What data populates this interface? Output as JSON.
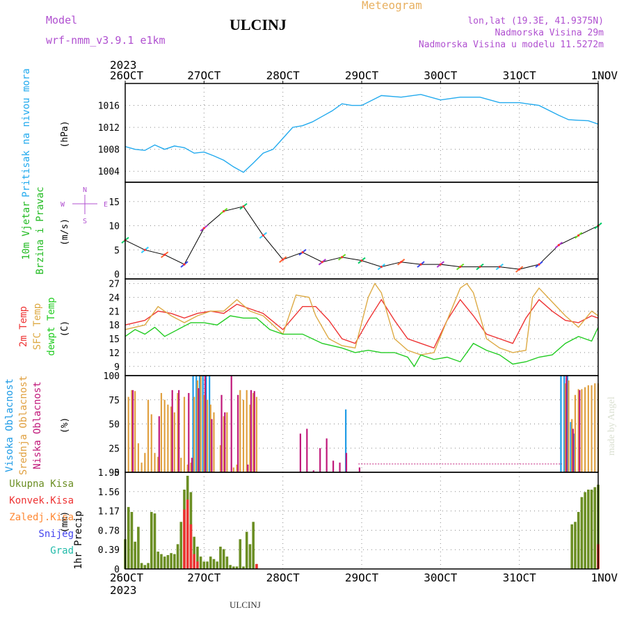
{
  "header": {
    "model_label": "Model",
    "model_name": "wrf-nmm_v3.9.1  e1km",
    "station": "ULCINJ",
    "product": "Meteogram",
    "lonlat": "lon,lat (19.3E, 41.9375N)",
    "altitude": "Nadmorska Visina 29m",
    "model_altitude": "Nadmorska Visina u modelu 11.5272m",
    "footer_station": "ULCINJ",
    "credit": "made by Angel"
  },
  "colors": {
    "pressure": "#22aaee",
    "temp2m": "#ee3333",
    "sfc_temp": "#ddaa44",
    "dewpoint": "#22cc22",
    "high_cloud": "#1e9be6",
    "mid_cloud": "#e0a040",
    "low_cloud": "#c0187a",
    "total_precip": "#6b8e23",
    "convective": "#ee3333",
    "frozen": "#ff8833",
    "snow": "#4444ee",
    "hail": "#22bbaa",
    "header_purple": "#b050d0",
    "header_orange": "#e8b060"
  },
  "chart_data": {
    "type": "multi-panel meteogram",
    "x_axis": {
      "year": "2023",
      "ticks": [
        "26OCT",
        "27OCT",
        "28OCT",
        "29OCT",
        "30OCT",
        "31OCT",
        "1NOV"
      ],
      "range_hours": [
        0,
        144
      ]
    },
    "panels": [
      {
        "id": "pressure",
        "type": "line",
        "ylabel": "Pritisak na nivou mora",
        "unit": "(hPa)",
        "ylim": [
          1002,
          1020
        ],
        "yticks": [
          1004,
          1008,
          1012,
          1016
        ],
        "series": [
          {
            "x": [
              0,
              3,
              6,
              9,
              12,
              15,
              18,
              21,
              24,
              27,
              30,
              33,
              36,
              39,
              42,
              45,
              48,
              51,
              54,
              57,
              60,
              63,
              66,
              69,
              72,
              78,
              84,
              90,
              96,
              102,
              108,
              114,
              120,
              126,
              132,
              135,
              138,
              141,
              144
            ],
            "y": [
              1008.5,
              1008,
              1007.8,
              1008.8,
              1008,
              1008.6,
              1008.3,
              1007.3,
              1007.5,
              1006.8,
              1006,
              1004.8,
              1003.8,
              1005.5,
              1007.3,
              1008,
              1010,
              1012,
              1012.3,
              1013,
              1014,
              1015,
              1016.3,
              1016,
              1016,
              1017.8,
              1017.5,
              1018,
              1017,
              1017.5,
              1017.5,
              1016.5,
              1016.5,
              1016,
              1014.2,
              1013.4,
              1013.3,
              1013.2,
              1012.6
            ]
          }
        ]
      },
      {
        "id": "wind",
        "type": "line+arrows",
        "ylabel": [
          "10m Vjetar",
          "Brzina i Pravac"
        ],
        "unit": "(m/s)",
        "legend_compass": [
          "N",
          "W",
          "E",
          "S"
        ],
        "ylim": [
          -1,
          19
        ],
        "yticks": [
          0,
          5,
          10,
          15
        ],
        "series": [
          {
            "name": "speed",
            "x": [
              0,
              6,
              12,
              18,
              24,
              30,
              36,
              42,
              48,
              54,
              60,
              66,
              72,
              78,
              84,
              90,
              96,
              102,
              108,
              114,
              120,
              126,
              132,
              138,
              144
            ],
            "y": [
              7,
              5,
              4,
              2,
              9.5,
              13,
              14,
              8,
              3,
              4.5,
              2.5,
              3.5,
              2.8,
              1.5,
              2.5,
              2,
              2,
              1.5,
              1.5,
              1.5,
              1,
              2,
              6,
              8,
              10
            ]
          }
        ]
      },
      {
        "id": "temperature",
        "type": "line",
        "ylabel": [
          "2m Temp",
          "SFC Temp",
          "dewpt Temp"
        ],
        "unit": "(C)",
        "ylim": [
          7,
          28
        ],
        "yticks": [
          9,
          12,
          15,
          18,
          21,
          24,
          27
        ],
        "series": [
          {
            "name": "2m Temp",
            "x": [
              0,
              6,
              10,
              14,
              18,
              22,
              26,
              30,
              34,
              38,
              42,
              48,
              54,
              58,
              62,
              66,
              70,
              74,
              78,
              82,
              86,
              90,
              94,
              98,
              102,
              106,
              110,
              114,
              118,
              122,
              126,
              130,
              134,
              138,
              142,
              144
            ],
            "y": [
              18,
              19,
              21,
              20.5,
              19.5,
              20.5,
              21,
              20.5,
              22.5,
              21.5,
              20.5,
              17,
              22,
              22,
              19,
              15,
              14,
              19,
              23.5,
              19,
              15,
              14,
              13,
              19,
              23.5,
              20,
              16,
              15,
              14,
              19.5,
              23.5,
              21,
              19,
              18.5,
              20,
              19.5
            ]
          },
          {
            "name": "SFC Temp",
            "x": [
              0,
              6,
              10,
              14,
              18,
              22,
              26,
              30,
              34,
              38,
              42,
              48,
              52,
              56,
              58,
              62,
              66,
              70,
              74,
              76,
              78,
              82,
              86,
              90,
              94,
              98,
              102,
              104,
              106,
              110,
              114,
              118,
              122,
              124,
              126,
              130,
              134,
              138,
              142,
              144
            ],
            "y": [
              17,
              18,
              22,
              20,
              18.5,
              20,
              21,
              21,
              23.5,
              21,
              20,
              16,
              24.5,
              24,
              20,
              15,
              13.5,
              13,
              24,
              27,
              25,
              15,
              12.5,
              11.5,
              12,
              19,
              26,
              27,
              25,
              15,
              13,
              12,
              12.5,
              24,
              26,
              23,
              20,
              17.5,
              21,
              20
            ]
          },
          {
            "name": "dewpt Temp",
            "x": [
              0,
              3,
              6,
              9,
              12,
              16,
              20,
              24,
              28,
              32,
              36,
              40,
              44,
              48,
              54,
              60,
              66,
              70,
              74,
              78,
              82,
              86,
              88,
              90,
              94,
              98,
              102,
              106,
              110,
              114,
              118,
              122,
              126,
              130,
              134,
              138,
              142,
              144
            ],
            "y": [
              15.5,
              17,
              16,
              17.5,
              15.5,
              17,
              18.5,
              18.5,
              18,
              20,
              19.5,
              19.5,
              17,
              16,
              16,
              14,
              13,
              12,
              12.5,
              12,
              12,
              11,
              9,
              11.5,
              10.5,
              11,
              10,
              14,
              12.5,
              11.5,
              9.5,
              10,
              11,
              11.5,
              14,
              15.5,
              14.5,
              17.5
            ]
          }
        ]
      },
      {
        "id": "cloud",
        "type": "bar",
        "ylabel": [
          "Visoka Oblacnost",
          "Srednja Oblacnost",
          "Niska Oblacnost"
        ],
        "unit": "(%)",
        "ylim": [
          0,
          100
        ],
        "yticks": [
          0,
          25,
          50,
          75,
          100
        ],
        "series": [
          {
            "name": "Visoka Oblacnost",
            "x": [
              21,
              22,
              23,
              24,
              25,
              26,
              67.5,
              133,
              134,
              135,
              136,
              137
            ],
            "values": [
              100,
              100,
              100,
              100,
              100,
              100,
              65,
              100,
              100,
              100,
              52,
              40
            ]
          },
          {
            "name": "Srednja Oblacnost",
            "x": [
              1,
              2,
              3,
              4,
              5,
              6,
              7,
              8,
              9,
              10,
              11,
              12,
              13,
              14,
              15,
              16,
              17,
              18,
              19,
              20,
              21,
              22,
              23,
              24,
              25,
              26,
              27,
              28,
              29,
              30,
              31,
              32,
              33,
              34,
              35,
              36,
              37,
              38,
              39,
              40,
              134,
              135,
              136,
              137,
              138,
              139,
              140,
              141,
              142,
              143,
              144
            ],
            "values": [
              78,
              85,
              84,
              30,
              10,
              20,
              75,
              60,
              20,
              16,
              82,
              75,
              70,
              68,
              62,
              82,
              15,
              78,
              8,
              10,
              78,
              95,
              100,
              80,
              75,
              70,
              62,
              0,
              28,
              58,
              62,
              0,
              5,
              8,
              85,
              75,
              85,
              70,
              82,
              78,
              92,
              95,
              55,
              80,
              86,
              86,
              88,
              90,
              90,
              92,
              92
            ]
          },
          {
            "name": "Niska Oblacnost",
            "x": [
              2,
              10,
              14,
              16,
              19,
              20,
              22,
              24,
              26,
              29,
              30,
              32,
              34,
              37,
              38,
              39,
              53,
              55,
              57,
              59,
              61,
              63,
              65,
              67,
              71,
              134,
              136,
              138
            ],
            "values": [
              85,
              58,
              85,
              85,
              82,
              15,
              87,
              100,
              55,
              80,
              62,
              100,
              80,
              8,
              85,
              84,
              40,
              45,
              2,
              25,
              35,
              12,
              10,
              20,
              5,
              100,
              45,
              85
            ]
          }
        ]
      },
      {
        "id": "precip",
        "type": "bar",
        "ylabel": "1hr Precip",
        "unit": "(mm)",
        "legend": [
          "Ukupna Kisa",
          "Konvek.Kisa",
          "Zaledj.Kisa",
          "Snijeg",
          "Grad"
        ],
        "ylim": [
          0,
          1.95
        ],
        "yticks": [
          0,
          0.39,
          0.78,
          1.17,
          1.56,
          1.95
        ],
        "yticklabels": [
          "0",
          "0.39",
          "0.78",
          "1.17",
          "1.56",
          "1.95"
        ],
        "series": [
          {
            "name": "Ukupna Kisa",
            "x": [
              0,
              1,
              2,
              3,
              4,
              5,
              6,
              7,
              8,
              9,
              10,
              11,
              12,
              13,
              14,
              15,
              16,
              17,
              18,
              19,
              20,
              21,
              22,
              23,
              24,
              25,
              26,
              27,
              28,
              29,
              30,
              31,
              32,
              33,
              34,
              35,
              36,
              37,
              38,
              39,
              40,
              136,
              137,
              138,
              139,
              140,
              141,
              142,
              143,
              144
            ],
            "values": [
              0.6,
              1.25,
              1.15,
              0.55,
              0.85,
              0.12,
              0.08,
              0.12,
              1.15,
              1.12,
              0.35,
              0.3,
              0.25,
              0.28,
              0.32,
              0.3,
              0.5,
              0.95,
              1.6,
              1.88,
              1.55,
              0.65,
              0.45,
              0.25,
              0.15,
              0.15,
              0.25,
              0.2,
              0.15,
              0.45,
              0.4,
              0.25,
              0.08,
              0.05,
              0.05,
              0.6,
              0.05,
              0.75,
              0.5,
              0.95,
              0.1,
              0.9,
              0.95,
              1.15,
              1.45,
              1.55,
              1.6,
              1.6,
              1.65,
              1.7
            ]
          },
          {
            "name": "Konvek.Kisa",
            "x": [
              18,
              19,
              20,
              21,
              22,
              40,
              144
            ],
            "values": [
              1.2,
              1.4,
              0.9,
              0.3,
              0.15,
              0.1,
              0.5
            ]
          }
        ]
      }
    ]
  }
}
